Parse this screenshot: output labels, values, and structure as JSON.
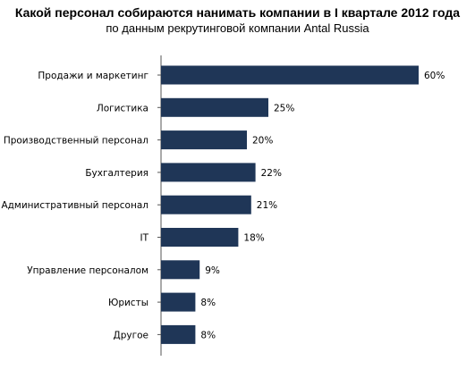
{
  "colors": {
    "bar": "#1f3657",
    "axis": "#555555"
  },
  "chart_data": {
    "type": "bar",
    "orientation": "horizontal",
    "title": "Какой персонал собираются нанимать компании в I квартале 2012 года",
    "subtitle": "по данным рекрутинговой компании Antal Russia",
    "categories": [
      "Продажи и маркетинг",
      "Логистика",
      "Производственный персонал",
      "Бухгалтерия",
      "Административный персонал",
      "IT",
      "Управление персоналом",
      "Юристы",
      "Другое"
    ],
    "values": [
      60,
      25,
      20,
      22,
      21,
      18,
      9,
      8,
      8
    ],
    "value_labels": [
      "60%",
      "25%",
      "20%",
      "22%",
      "21%",
      "18%",
      "9%",
      "8%",
      "8%"
    ],
    "unit": "%",
    "xlim": [
      0,
      65
    ],
    "grid": false,
    "legend": "none"
  }
}
